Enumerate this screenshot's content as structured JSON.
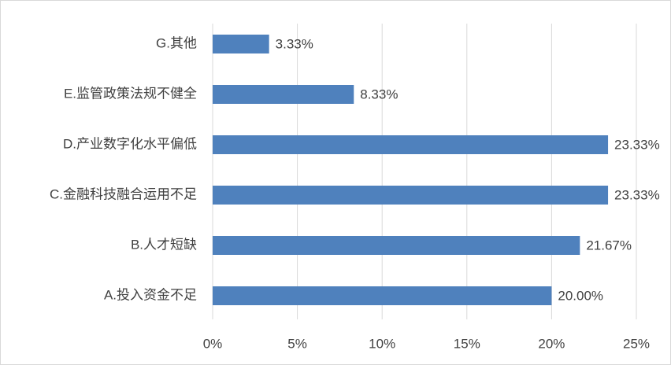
{
  "chart_data": {
    "type": "hbar",
    "categories": [
      "A.投入资金不足",
      "B.人才短缺",
      "C.金融科技融合运用不足",
      "D.产业数字化水平偏低",
      "E.监管政策法规不健全",
      "G.其他"
    ],
    "values": [
      20.0,
      21.67,
      23.33,
      23.33,
      8.33,
      3.33
    ],
    "value_labels": [
      "20.00%",
      "21.67%",
      "23.33%",
      "23.33%",
      "8.33%",
      "3.33%"
    ],
    "color": "#4f81bd",
    "xlim": [
      0,
      25
    ],
    "xticks": [
      {
        "value": 0,
        "label": "0%"
      },
      {
        "value": 5,
        "label": "5%"
      },
      {
        "value": 10,
        "label": "10%"
      },
      {
        "value": 15,
        "label": "15%"
      },
      {
        "value": 20,
        "label": "20%"
      },
      {
        "value": 25,
        "label": "25%"
      }
    ],
    "grid": true
  }
}
